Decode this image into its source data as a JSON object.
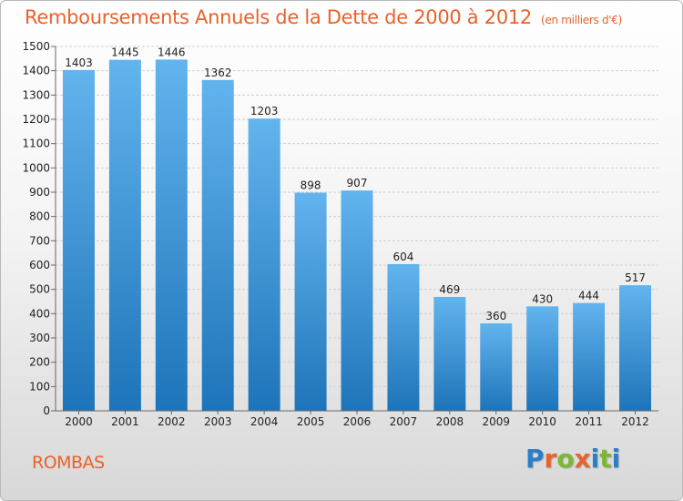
{
  "chart_data": {
    "type": "bar",
    "title": "Remboursements Annuels de la Dette de 2000 à 2012",
    "unit": "(en milliers d'€)",
    "categories": [
      "2000",
      "2001",
      "2002",
      "2003",
      "2004",
      "2005",
      "2006",
      "2007",
      "2008",
      "2009",
      "2010",
      "2011",
      "2012"
    ],
    "values": [
      1403,
      1445,
      1446,
      1362,
      1203,
      898,
      907,
      604,
      469,
      360,
      430,
      444,
      517
    ],
    "ylim": [
      0,
      1500
    ],
    "yticks": [
      0,
      100,
      200,
      300,
      400,
      500,
      600,
      700,
      800,
      900,
      1000,
      1100,
      1200,
      1300,
      1400,
      1500
    ],
    "grid": true,
    "colors": {
      "bar_light": "#62b4ee",
      "bar_dark": "#1e74b9",
      "title": "#e8622a"
    }
  },
  "commune": "ROMBAS",
  "logo": {
    "letters": [
      "P",
      "r",
      "o",
      "x",
      "i",
      "t",
      "i"
    ],
    "colors": [
      "#2a7fc7",
      "#e8622a",
      "#7cb82f",
      "#e8622a",
      "#2a7fc7",
      "#7cb82f",
      "#2a7fc7"
    ]
  }
}
